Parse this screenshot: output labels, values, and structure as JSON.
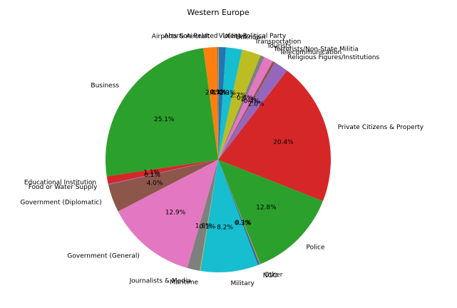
{
  "chart_data": {
    "type": "pie",
    "title": "Western Europe",
    "start_angle_deg": 90,
    "direction": "counterclockwise",
    "slices": [
      {
        "label": "Abortion Related",
        "value": 0.1,
        "pct_label": "0.1%",
        "color": "#1f77b4"
      },
      {
        "label": "Airports & Aircraft",
        "value": 2.0,
        "pct_label": "2.0%",
        "color": "#ff7f0e"
      },
      {
        "label": "Business",
        "value": 25.1,
        "pct_label": "25.1%",
        "color": "#2ca02c"
      },
      {
        "label": "Educational Institution",
        "value": 1.1,
        "pct_label": "1.1%",
        "color": "#d62728"
      },
      {
        "label": "Food or Water Supply",
        "value": 0.1,
        "pct_label": "0.1%",
        "color": "#9467bd"
      },
      {
        "label": "Government (Diplomatic)",
        "value": 4.0,
        "pct_label": "4.0%",
        "color": "#8c564b"
      },
      {
        "label": "Government (General)",
        "value": 12.9,
        "pct_label": "12.9%",
        "color": "#e377c2"
      },
      {
        "label": "Journalists & Media",
        "value": 1.8,
        "pct_label": "1.8%",
        "color": "#7f7f7f"
      },
      {
        "label": "Maritime",
        "value": 0.1,
        "pct_label": "0.1%",
        "color": "#bcbd22"
      },
      {
        "label": "Military",
        "value": 8.2,
        "pct_label": "8.2%",
        "color": "#17becf"
      },
      {
        "label": "NGO",
        "value": 0.3,
        "pct_label": "0.3%",
        "color": "#1f77b4"
      },
      {
        "label": "Other",
        "value": 0.1,
        "pct_label": "0.1%",
        "color": "#ff7f0e"
      },
      {
        "label": "Police",
        "value": 12.8,
        "pct_label": "12.8%",
        "color": "#2ca02c"
      },
      {
        "label": "Private Citizens & Property",
        "value": 20.4,
        "pct_label": "20.4%",
        "color": "#d62728"
      },
      {
        "label": "Religious Figures/Institutions",
        "value": 2.0,
        "pct_label": "2.0%",
        "color": "#9467bd"
      },
      {
        "label": "Telecommunication",
        "value": 0.4,
        "pct_label": "0.4%",
        "color": "#8c564b"
      },
      {
        "label": "Terrorists/Non-State Militia",
        "value": 1.3,
        "pct_label": "1.3%",
        "color": "#e377c2"
      },
      {
        "label": "Tourists",
        "value": 0.6,
        "pct_label": "0.6%",
        "color": "#7f7f7f"
      },
      {
        "label": "Transportation",
        "value": 2.7,
        "pct_label": "2.7%",
        "color": "#bcbd22"
      },
      {
        "label": "Unknown",
        "value": 2.3,
        "pct_label": "2.3%",
        "color": "#17becf"
      },
      {
        "label": "Utilities",
        "value": 1.0,
        "pct_label": "1.0%",
        "color": "#1f77b4"
      },
      {
        "label": "Violent Political Party",
        "value": 0.1,
        "pct_label": "0.1%",
        "color": "#ff7f0e"
      }
    ]
  }
}
